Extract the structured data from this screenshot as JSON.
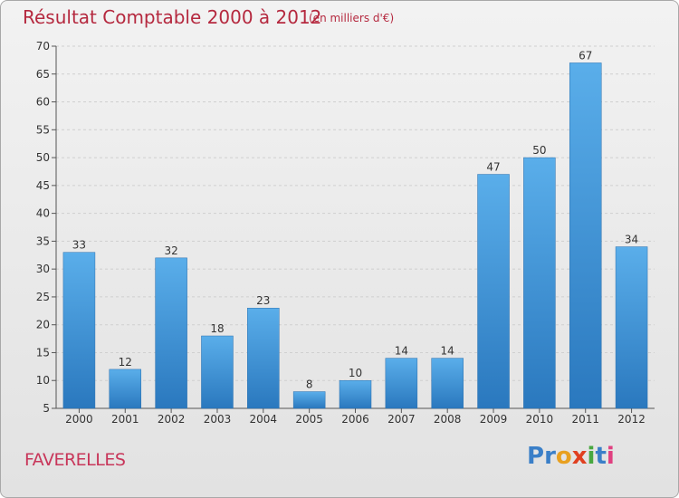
{
  "title": "Résultat Comptable 2000 à 2012",
  "subtitle": "(en milliers d'€)",
  "commune": "FAVERELLES",
  "logo": {
    "text": "Proxiti",
    "letters": [
      "P",
      "r",
      "o",
      "x",
      "i",
      "t",
      "i"
    ],
    "colors": [
      "#3a7fc8",
      "#3a7fc8",
      "#e8a020",
      "#e04020",
      "#48a840",
      "#3a7fc8",
      "#e04080"
    ]
  },
  "colors": {
    "bar": "#3b8fd6",
    "title": "#b5293f"
  },
  "chart_data": {
    "type": "bar",
    "categories": [
      "2000",
      "2001",
      "2002",
      "2003",
      "2004",
      "2005",
      "2006",
      "2007",
      "2008",
      "2009",
      "2010",
      "2011",
      "2012"
    ],
    "values": [
      33,
      12,
      32,
      18,
      23,
      8,
      10,
      14,
      14,
      47,
      50,
      67,
      34
    ],
    "ylim": [
      5,
      70
    ],
    "yticks": [
      5,
      10,
      15,
      20,
      25,
      30,
      35,
      40,
      45,
      50,
      55,
      60,
      65,
      70
    ],
    "grid": true
  }
}
